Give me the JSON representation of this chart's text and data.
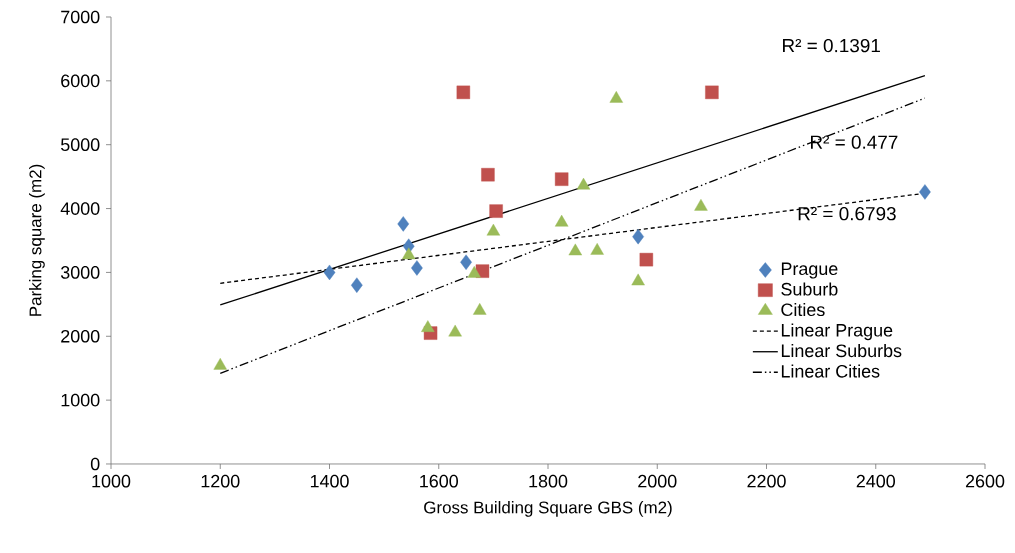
{
  "chart_data": {
    "type": "scatter",
    "xlabel": "Gross Building Square GBS (m2)",
    "ylabel": "Parking square (m2)",
    "xlim": [
      1000,
      2600
    ],
    "xticks": [
      1000,
      1200,
      1400,
      1600,
      1800,
      2000,
      2200,
      2400,
      2600
    ],
    "ylim": [
      0,
      7000
    ],
    "yticks": [
      0,
      1000,
      2000,
      3000,
      4000,
      5000,
      6000,
      7000
    ],
    "grid": false,
    "legend": "right",
    "series": [
      {
        "name": "Prague",
        "marker": "diamond",
        "color": "#4f81bd",
        "x": [
          1400,
          1450,
          1535,
          1545,
          1560,
          1650,
          1965,
          2490
        ],
        "values": [
          3000,
          2800,
          3760,
          3410,
          3070,
          3160,
          3560,
          4260
        ]
      },
      {
        "name": "Suburb",
        "marker": "square",
        "color": "#c0504d",
        "x": [
          1645,
          1690,
          1705,
          1825,
          1680,
          1585,
          2100,
          1980
        ],
        "values": [
          5820,
          4530,
          3960,
          4460,
          3020,
          2050,
          5820,
          3200
        ]
      },
      {
        "name": "Cities",
        "marker": "triangle",
        "color": "#9bbb59",
        "x": [
          1200,
          1545,
          1665,
          1675,
          1580,
          1630,
          1700,
          1825,
          1850,
          1865,
          1890,
          1925,
          2080,
          1965
        ],
        "values": [
          1540,
          3270,
          2980,
          2400,
          2130,
          2060,
          3640,
          3780,
          3330,
          4360,
          3340,
          5720,
          4030,
          2860
        ]
      },
      {
        "name": "Linear Prague",
        "type": "line",
        "line_style": "dashed",
        "color": "#000000",
        "x": [
          1200,
          2490
        ],
        "values": [
          2830,
          4240
        ]
      },
      {
        "name": "Linear Suburbs",
        "type": "line",
        "line_style": "solid",
        "color": "#000000",
        "x": [
          1200,
          2490
        ],
        "values": [
          2490,
          6080
        ]
      },
      {
        "name": "Linear Cities",
        "type": "line",
        "line_style": "dashdotdot",
        "color": "#000000",
        "x": [
          1200,
          2490
        ],
        "values": [
          1420,
          5730
        ]
      }
    ],
    "annotations": [
      "R² = 0.1391",
      "R² = 0.477",
      "R² = 0.6793"
    ]
  }
}
